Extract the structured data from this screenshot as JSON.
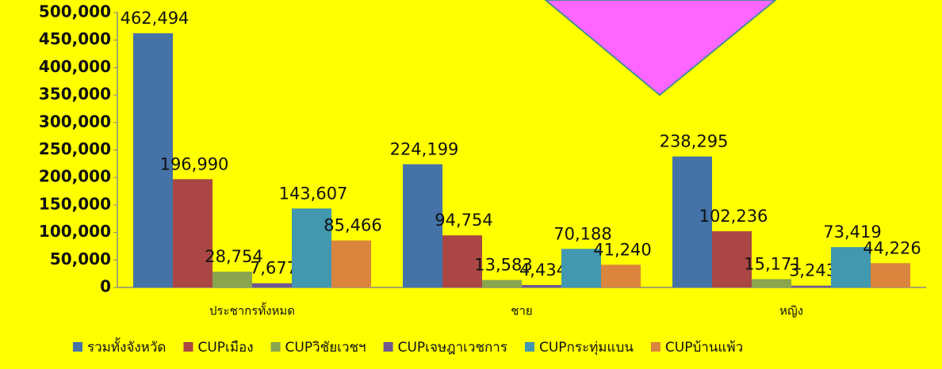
{
  "chart_data": {
    "type": "bar",
    "categories": [
      "ประชากรทั้งหมด",
      "ชาย",
      "หญิง"
    ],
    "series": [
      {
        "name": "รวมทั้งจังหวัด",
        "color": "#4572a7",
        "values": [
          462494,
          224199,
          238295
        ],
        "value_labels": [
          "462,494",
          "224,199",
          "238,295"
        ]
      },
      {
        "name": "CUPเมือง",
        "color": "#aa4643",
        "values": [
          196990,
          94754,
          102236
        ],
        "value_labels": [
          "196,990",
          "94,754",
          "102,236"
        ]
      },
      {
        "name": "CUPวิชัยเวชฯ",
        "color": "#89a54e",
        "values": [
          28754,
          13583,
          15171
        ],
        "value_labels": [
          "28,754",
          "13,583",
          "15,171"
        ]
      },
      {
        "name": "CUPเจษฎาเวชการ",
        "color": "#71588f",
        "values": [
          7677,
          4434,
          3243
        ],
        "value_labels": [
          "7,677",
          "4,434",
          "3,243"
        ]
      },
      {
        "name": "CUPกระทุ่มแบน",
        "color": "#4198af",
        "values": [
          143607,
          70188,
          73419
        ],
        "value_labels": [
          "143,607",
          "70,188",
          "73,419"
        ]
      },
      {
        "name": "CUPบ้านแพ้ว",
        "color": "#db843d",
        "values": [
          85466,
          41240,
          44226
        ],
        "value_labels": [
          "85,466",
          "41,240",
          "44,226"
        ]
      }
    ],
    "ylim": [
      0,
      500000
    ],
    "yticks": [
      0,
      {
        "value": 50000,
        "label": "50,000"
      },
      {
        "value": 100000,
        "label": "100,000"
      },
      {
        "value": 150000,
        "label": "150,000"
      },
      {
        "value": 200000,
        "label": "200,000"
      },
      {
        "value": 250000,
        "label": "250,000"
      },
      {
        "value": 300000,
        "label": "300,000"
      },
      {
        "value": 350000,
        "label": "350,000"
      },
      {
        "value": 400000,
        "label": "400,000"
      },
      {
        "value": 450000,
        "label": "450,000"
      },
      {
        "value": 500000,
        "label": "500,000"
      }
    ],
    "legend": "bottom"
  }
}
